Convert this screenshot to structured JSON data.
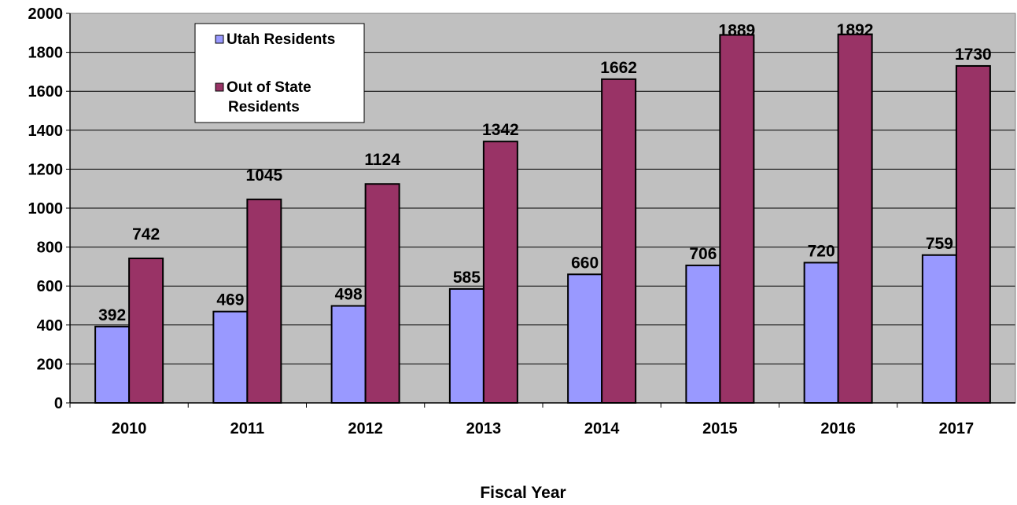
{
  "chart_data": {
    "type": "bar",
    "title": "",
    "xlabel": "Fiscal Year",
    "ylabel": "",
    "categories": [
      "2010",
      "2011",
      "2012",
      "2013",
      "2014",
      "2015",
      "2016",
      "2017"
    ],
    "series": [
      {
        "name": "Utah Residents",
        "values": [
          392,
          469,
          498,
          585,
          660,
          706,
          720,
          759
        ],
        "color": "#9999ff"
      },
      {
        "name": "Out of State Residents",
        "values": [
          742,
          1045,
          1124,
          1342,
          1662,
          1889,
          1892,
          1730
        ],
        "color": "#993366"
      }
    ],
    "ylim": [
      0,
      2000
    ],
    "yticks": [
      0,
      200,
      400,
      600,
      800,
      1000,
      1200,
      1400,
      1600,
      1800,
      2000
    ],
    "plot_background": "#c0c0c0",
    "grid": true,
    "legend_position": "top-left"
  }
}
